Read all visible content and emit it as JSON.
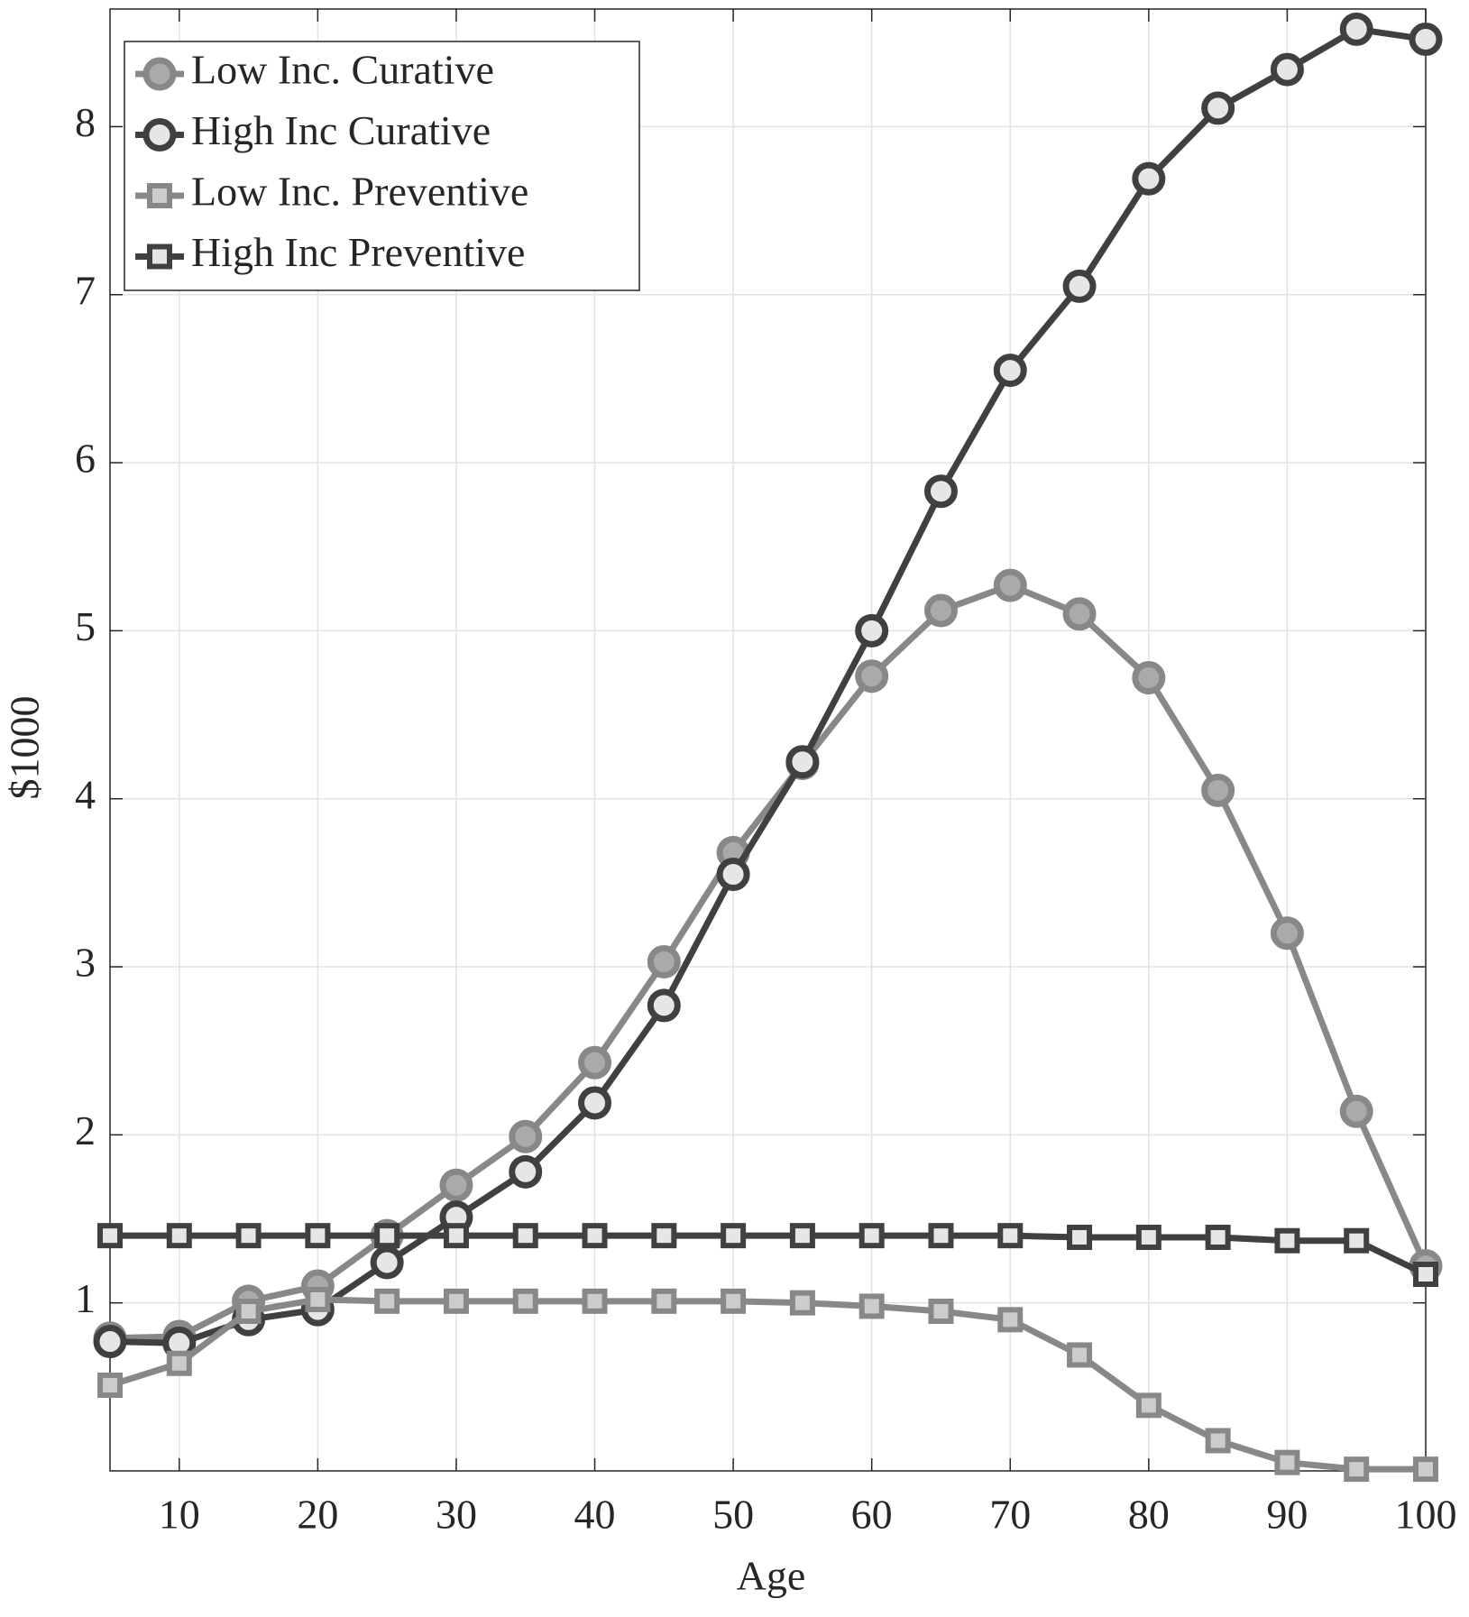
{
  "chart_data": {
    "type": "line",
    "xlabel": "Age",
    "ylabel": "$1000",
    "x": [
      5,
      10,
      15,
      20,
      25,
      30,
      35,
      40,
      45,
      50,
      55,
      60,
      65,
      70,
      75,
      80,
      85,
      90,
      95,
      100
    ],
    "series": [
      {
        "name": "Low Inc. Curative",
        "color": "#888888",
        "marker": "circle",
        "marker_fill": "#aaaaaa",
        "values": [
          0.79,
          0.8,
          1.01,
          1.1,
          1.4,
          1.7,
          1.99,
          2.43,
          3.03,
          3.68,
          4.21,
          4.73,
          5.12,
          5.27,
          5.1,
          4.72,
          4.05,
          3.2,
          2.14,
          1.22
        ]
      },
      {
        "name": "High Inc Curative",
        "color": "#404040",
        "marker": "circle",
        "marker_fill": "#e6e6e6",
        "values": [
          0.77,
          0.76,
          0.9,
          0.96,
          1.24,
          1.51,
          1.78,
          2.19,
          2.77,
          3.55,
          4.22,
          5.0,
          5.83,
          6.55,
          7.05,
          7.69,
          8.11,
          8.34,
          8.58,
          8.52
        ]
      },
      {
        "name": "Low Inc. Preventive",
        "color": "#888888",
        "marker": "square",
        "marker_fill": "#cccccc",
        "values": [
          0.51,
          0.64,
          0.95,
          1.02,
          1.01,
          1.01,
          1.01,
          1.01,
          1.01,
          1.01,
          1.0,
          0.98,
          0.95,
          0.9,
          0.69,
          0.39,
          0.18,
          0.05,
          0.01,
          0.01
        ]
      },
      {
        "name": "High Inc Preventive",
        "color": "#404040",
        "marker": "square",
        "marker_fill": "#e6e6e6",
        "values": [
          1.4,
          1.4,
          1.4,
          1.4,
          1.4,
          1.4,
          1.4,
          1.4,
          1.4,
          1.4,
          1.4,
          1.4,
          1.4,
          1.4,
          1.39,
          1.39,
          1.39,
          1.37,
          1.37,
          1.17
        ]
      }
    ],
    "xlim": [
      5,
      100
    ],
    "ylim": [
      0,
      8.7
    ],
    "xticks": [
      10,
      20,
      30,
      40,
      50,
      60,
      70,
      80,
      90,
      100
    ],
    "yticks": [
      1,
      2,
      3,
      4,
      5,
      6,
      7,
      8
    ],
    "grid": true,
    "legend": "upper left"
  }
}
